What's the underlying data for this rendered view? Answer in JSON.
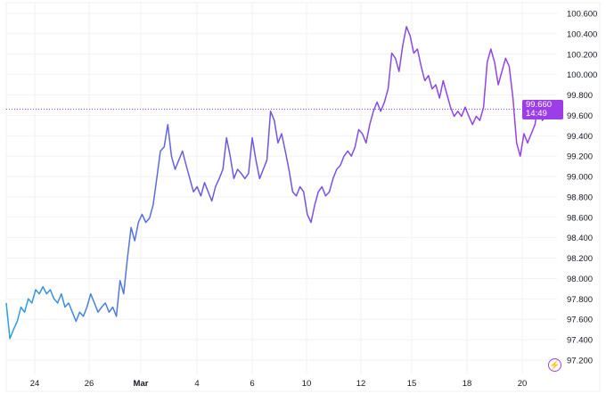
{
  "chart_data": {
    "type": "line",
    "title": "",
    "xlabel": "",
    "ylabel": "",
    "ylim": [
      97.1,
      100.65
    ],
    "grid": true,
    "x_ticks": [
      "24",
      "26",
      "Mar",
      "4",
      "6",
      "10",
      "12",
      "15",
      "18",
      "20"
    ],
    "y_ticks": [
      "100.600",
      "100.400",
      "100.200",
      "100.000",
      "99.800",
      "99.600",
      "99.400",
      "99.200",
      "99.000",
      "98.800",
      "98.600",
      "98.400",
      "98.200",
      "98.000",
      "97.800",
      "97.600",
      "97.400",
      "97.200"
    ],
    "last_value": "99.660",
    "countdown": "14:49",
    "colors": {
      "start": "#2e9fe0",
      "end": "#9c3ee8",
      "badge": "#9c3ee8"
    },
    "series": [
      {
        "values": [
          97.76,
          97.41,
          97.5,
          97.58,
          97.72,
          97.67,
          97.8,
          97.76,
          97.89,
          97.85,
          97.92,
          97.85,
          97.89,
          97.8,
          97.76,
          97.85,
          97.72,
          97.76,
          97.67,
          97.58,
          97.67,
          97.63,
          97.72,
          97.85,
          97.76,
          97.67,
          97.72,
          97.76,
          97.67,
          97.72,
          97.63,
          97.98,
          97.85,
          98.2,
          98.5,
          98.37,
          98.55,
          98.63,
          98.55,
          98.59,
          98.72,
          98.98,
          99.25,
          99.29,
          99.51,
          99.2,
          99.07,
          99.16,
          99.25,
          99.11,
          98.98,
          98.85,
          98.9,
          98.81,
          98.94,
          98.85,
          98.76,
          98.9,
          98.98,
          99.07,
          99.38,
          99.2,
          98.98,
          99.07,
          99.03,
          98.98,
          99.03,
          99.38,
          99.16,
          98.98,
          99.07,
          99.16,
          99.64,
          99.55,
          99.33,
          99.42,
          99.25,
          99.07,
          98.85,
          98.81,
          98.9,
          98.85,
          98.63,
          98.55,
          98.72,
          98.85,
          98.9,
          98.81,
          98.85,
          98.98,
          99.07,
          99.11,
          99.2,
          99.25,
          99.2,
          99.29,
          99.46,
          99.42,
          99.33,
          99.51,
          99.64,
          99.73,
          99.64,
          99.73,
          99.86,
          100.21,
          100.16,
          100.03,
          100.29,
          100.47,
          100.38,
          100.21,
          100.25,
          100.08,
          99.94,
          99.99,
          99.86,
          99.9,
          99.77,
          99.94,
          99.81,
          99.68,
          99.59,
          99.64,
          99.59,
          99.68,
          99.59,
          99.51,
          99.59,
          99.55,
          99.68,
          100.12,
          100.25,
          100.12,
          99.9,
          100.03,
          100.16,
          100.08,
          99.77,
          99.33,
          99.2,
          99.42,
          99.33,
          99.42,
          99.51,
          99.73,
          99.55,
          99.59,
          99.64,
          99.66,
          99.66
        ]
      }
    ]
  }
}
